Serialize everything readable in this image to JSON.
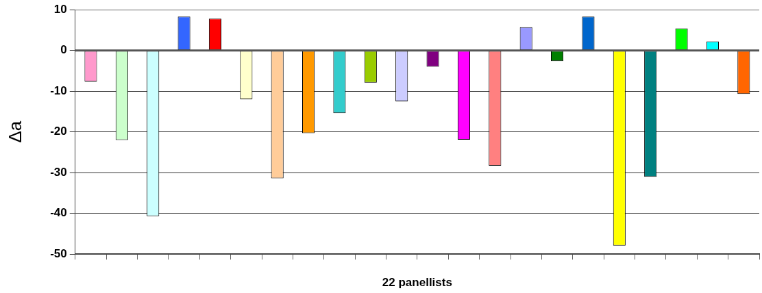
{
  "chart_data": {
    "type": "bar",
    "xlabel": "22 panellists",
    "ylabel": "Δa",
    "categories": [
      null,
      null,
      null,
      null,
      null,
      null,
      null,
      null,
      null,
      null,
      null,
      null,
      null,
      null,
      null,
      null,
      null,
      null,
      null,
      null,
      null,
      null
    ],
    "values": [
      -7.6,
      -22,
      -40.7,
      8.3,
      7.8,
      -12,
      -31.4,
      -20.3,
      -15.4,
      -7.9,
      -12.5,
      -4,
      -21.9,
      -28.3,
      5.7,
      -2.6,
      8.3,
      -47.9,
      -31,
      5.4,
      2.2,
      -10.7
    ],
    "colors": [
      "#ff99cc",
      "#ccffcc",
      "#ccffff",
      "#3366ff",
      "#ff0000",
      "#ffffcc",
      "#ffcc99",
      "#ff9900",
      "#33cccc",
      "#99cc00",
      "#ccccff",
      "#800080",
      "#ff00ff",
      "#ff8080",
      "#9999ff",
      "#008000",
      "#0066cc",
      "#ffff00",
      "#008080",
      "#00ff00",
      "#00ffff",
      "#ff6600"
    ],
    "ylim": [
      -50,
      10
    ],
    "yticks": [
      -50,
      -40,
      -30,
      -20,
      -10,
      0,
      10
    ],
    "grid": "y"
  }
}
